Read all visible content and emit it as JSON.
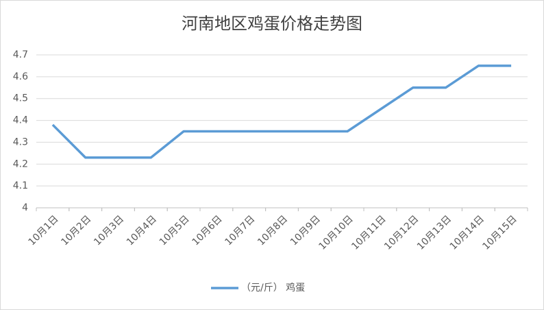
{
  "chart_data": {
    "type": "line",
    "title": "河南地区鸡蛋价格走势图",
    "categories": [
      "10月1日",
      "10月2日",
      "10月3日",
      "10月4日",
      "10月5日",
      "10月6日",
      "10月7日",
      "10月8日",
      "10月9日",
      "10月10日",
      "10月11日",
      "10月12日",
      "10月13日",
      "10月14日",
      "10月15日"
    ],
    "series": [
      {
        "name": "（元/斤） 鸡蛋",
        "color": "#5b9bd5",
        "values": [
          4.38,
          4.23,
          4.23,
          4.23,
          4.35,
          4.35,
          4.35,
          4.35,
          4.35,
          4.35,
          4.45,
          4.55,
          4.55,
          4.65,
          4.65
        ]
      }
    ],
    "ylim": [
      4,
      4.7
    ],
    "yticks": [
      4,
      4.1,
      4.2,
      4.3,
      4.4,
      4.5,
      4.6,
      4.7
    ],
    "grid": true,
    "legend": "bottom"
  }
}
